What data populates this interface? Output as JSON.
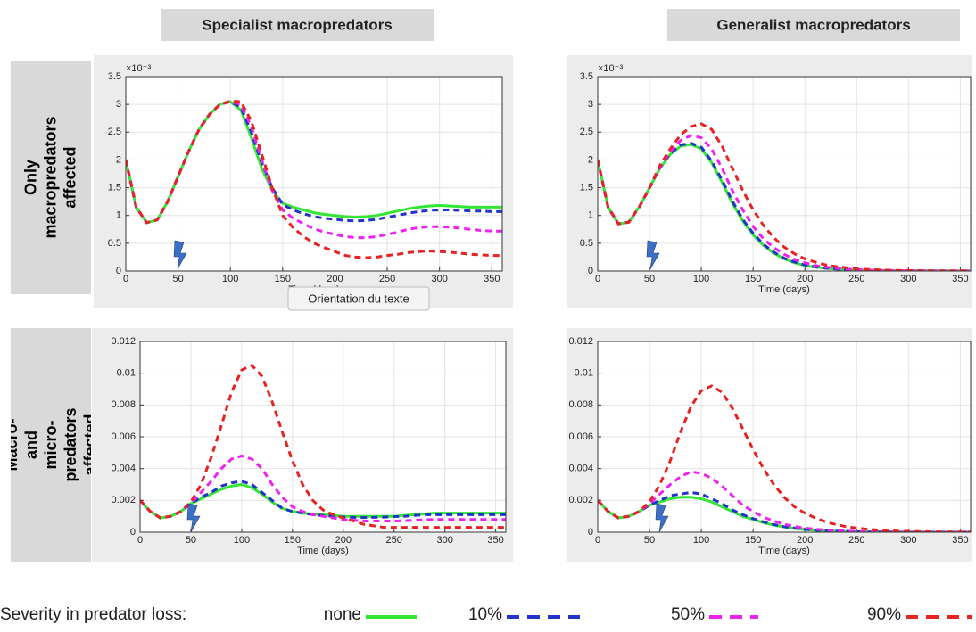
{
  "column_headers": [
    "Specialist macropredators",
    "Generalist macropredators"
  ],
  "row_labels": [
    "Only macropredators affected",
    "Macro- and micro-predators affected"
  ],
  "tooltip": "Orientation du texte",
  "legend_title": "Severity in predator loss:",
  "chart_data": [
    {
      "type": "line",
      "xlabel": "Time (days)",
      "y_multiplier": "×10⁻³",
      "x": [
        0,
        10,
        20,
        30,
        40,
        50,
        60,
        70,
        80,
        90,
        100,
        110,
        120,
        130,
        140,
        150,
        160,
        170,
        180,
        190,
        200,
        210,
        220,
        230,
        240,
        250,
        260,
        270,
        280,
        290,
        300,
        310,
        320,
        330,
        340,
        350,
        360
      ],
      "xlim": [
        0,
        360
      ],
      "xticks": [
        0,
        50,
        100,
        150,
        200,
        250,
        300,
        350
      ],
      "ylim": [
        0,
        3.5
      ],
      "yticks": [
        0,
        0.5,
        1,
        1.5,
        2,
        2.5,
        3,
        3.5
      ],
      "grid": true,
      "series": [
        {
          "name": "none",
          "color": "#33e633",
          "line_style": "solid",
          "values": [
            2.0,
            1.15,
            0.87,
            0.92,
            1.25,
            1.7,
            2.15,
            2.55,
            2.82,
            3.0,
            3.05,
            2.9,
            2.4,
            1.85,
            1.45,
            1.22,
            1.15,
            1.1,
            1.05,
            1.02,
            1.0,
            0.98,
            0.97,
            0.98,
            1.0,
            1.04,
            1.08,
            1.12,
            1.15,
            1.17,
            1.18,
            1.17,
            1.16,
            1.15,
            1.15,
            1.15,
            1.15
          ]
        },
        {
          "name": "10%",
          "color": "#2233cc",
          "line_style": "dashed",
          "values": [
            2.0,
            1.15,
            0.87,
            0.92,
            1.25,
            1.7,
            2.15,
            2.55,
            2.82,
            3.0,
            3.05,
            2.95,
            2.5,
            1.95,
            1.5,
            1.2,
            1.1,
            1.03,
            0.98,
            0.95,
            0.93,
            0.91,
            0.9,
            0.91,
            0.93,
            0.97,
            1.0,
            1.04,
            1.07,
            1.09,
            1.1,
            1.1,
            1.09,
            1.08,
            1.08,
            1.07,
            1.07
          ]
        },
        {
          "name": "50%",
          "color": "#ee22ee",
          "line_style": "dashed",
          "values": [
            2.0,
            1.15,
            0.87,
            0.92,
            1.25,
            1.7,
            2.15,
            2.55,
            2.82,
            3.0,
            3.05,
            3.0,
            2.6,
            2.0,
            1.45,
            1.1,
            0.95,
            0.85,
            0.76,
            0.7,
            0.66,
            0.62,
            0.6,
            0.6,
            0.62,
            0.66,
            0.7,
            0.75,
            0.78,
            0.8,
            0.8,
            0.79,
            0.77,
            0.75,
            0.73,
            0.72,
            0.72
          ]
        },
        {
          "name": "90%",
          "color": "#e62222",
          "line_style": "dashed",
          "values": [
            2.0,
            1.15,
            0.87,
            0.92,
            1.25,
            1.7,
            2.15,
            2.55,
            2.82,
            3.0,
            3.06,
            3.05,
            2.7,
            2.1,
            1.5,
            1.0,
            0.78,
            0.62,
            0.5,
            0.42,
            0.35,
            0.28,
            0.25,
            0.24,
            0.25,
            0.28,
            0.3,
            0.33,
            0.35,
            0.36,
            0.35,
            0.34,
            0.32,
            0.3,
            0.29,
            0.28,
            0.28
          ]
        }
      ]
    },
    {
      "type": "line",
      "xlabel": "Time (days)",
      "y_multiplier": "×10⁻³",
      "x": [
        0,
        10,
        20,
        30,
        40,
        50,
        60,
        70,
        80,
        90,
        100,
        110,
        120,
        130,
        140,
        150,
        160,
        170,
        180,
        190,
        200,
        210,
        220,
        230,
        240,
        250,
        260,
        270,
        280,
        290,
        300,
        310,
        320,
        330,
        340,
        350,
        360
      ],
      "xlim": [
        0,
        360
      ],
      "xticks": [
        0,
        50,
        100,
        150,
        200,
        250,
        300,
        350
      ],
      "ylim": [
        0,
        3.5
      ],
      "yticks": [
        0,
        0.5,
        1,
        1.5,
        2,
        2.5,
        3,
        3.5
      ],
      "grid": true,
      "series": [
        {
          "name": "none",
          "color": "#33e633",
          "line_style": "solid",
          "values": [
            2.0,
            1.15,
            0.85,
            0.88,
            1.15,
            1.5,
            1.85,
            2.1,
            2.25,
            2.28,
            2.2,
            1.95,
            1.6,
            1.22,
            0.9,
            0.65,
            0.46,
            0.32,
            0.22,
            0.15,
            0.1,
            0.07,
            0.05,
            0.035,
            0.025,
            0.018,
            0.012,
            0.009,
            0.006,
            0.004,
            0.003,
            0.002,
            0.002,
            0.002,
            0.002,
            0.002,
            0.002
          ]
        },
        {
          "name": "10%",
          "color": "#2233cc",
          "line_style": "dashed",
          "values": [
            2.0,
            1.15,
            0.85,
            0.88,
            1.15,
            1.5,
            1.86,
            2.12,
            2.27,
            2.3,
            2.23,
            1.98,
            1.64,
            1.26,
            0.93,
            0.68,
            0.48,
            0.34,
            0.23,
            0.16,
            0.11,
            0.075,
            0.053,
            0.037,
            0.026,
            0.019,
            0.013,
            0.01,
            0.007,
            0.005,
            0.003,
            0.002,
            0.002,
            0.002,
            0.002,
            0.002,
            0.002
          ]
        },
        {
          "name": "50%",
          "color": "#ee22ee",
          "line_style": "dashed",
          "values": [
            2.0,
            1.15,
            0.85,
            0.88,
            1.15,
            1.5,
            1.87,
            2.15,
            2.35,
            2.44,
            2.4,
            2.2,
            1.85,
            1.45,
            1.1,
            0.8,
            0.58,
            0.42,
            0.3,
            0.21,
            0.15,
            0.1,
            0.07,
            0.05,
            0.035,
            0.025,
            0.018,
            0.013,
            0.009,
            0.006,
            0.004,
            0.003,
            0.003,
            0.002,
            0.002,
            0.002,
            0.002
          ]
        },
        {
          "name": "90%",
          "color": "#e62222",
          "line_style": "dashed",
          "values": [
            2.0,
            1.15,
            0.85,
            0.88,
            1.15,
            1.5,
            1.9,
            2.2,
            2.45,
            2.6,
            2.65,
            2.55,
            2.25,
            1.85,
            1.45,
            1.1,
            0.82,
            0.6,
            0.43,
            0.31,
            0.22,
            0.16,
            0.11,
            0.08,
            0.06,
            0.04,
            0.03,
            0.022,
            0.016,
            0.012,
            0.009,
            0.007,
            0.005,
            0.004,
            0.003,
            0.003,
            0.003
          ]
        }
      ]
    },
    {
      "type": "line",
      "xlabel": "Time (days)",
      "x": [
        0,
        10,
        20,
        30,
        40,
        50,
        60,
        70,
        80,
        90,
        100,
        110,
        120,
        130,
        140,
        150,
        160,
        170,
        180,
        190,
        200,
        210,
        220,
        230,
        240,
        250,
        260,
        270,
        280,
        290,
        300,
        310,
        320,
        330,
        340,
        350,
        360
      ],
      "xlim": [
        0,
        360
      ],
      "xticks": [
        0,
        50,
        100,
        150,
        200,
        250,
        300,
        350
      ],
      "ylim": [
        0,
        0.012
      ],
      "yticks": [
        0,
        0.002,
        0.004,
        0.006,
        0.008,
        0.01,
        0.012
      ],
      "grid": true,
      "series": [
        {
          "name": "none",
          "color": "#33e633",
          "line_style": "solid",
          "values": [
            0.002,
            0.0013,
            0.0009,
            0.001,
            0.0013,
            0.0018,
            0.0021,
            0.0024,
            0.0027,
            0.0029,
            0.003,
            0.0028,
            0.0024,
            0.0019,
            0.0015,
            0.0013,
            0.0012,
            0.00115,
            0.0011,
            0.00105,
            0.001,
            0.001,
            0.001,
            0.001,
            0.001,
            0.001,
            0.00105,
            0.0011,
            0.00115,
            0.0012,
            0.0012,
            0.0012,
            0.0012,
            0.0012,
            0.0012,
            0.0012,
            0.0012
          ]
        },
        {
          "name": "10%",
          "color": "#2233cc",
          "line_style": "dashed",
          "values": [
            0.002,
            0.0013,
            0.0009,
            0.001,
            0.0013,
            0.0018,
            0.0022,
            0.0025,
            0.0029,
            0.0031,
            0.0032,
            0.003,
            0.0025,
            0.002,
            0.0015,
            0.0013,
            0.0012,
            0.0011,
            0.00105,
            0.001,
            0.00095,
            0.00093,
            0.00092,
            0.00093,
            0.00095,
            0.00098,
            0.001,
            0.00105,
            0.0011,
            0.0011,
            0.0011,
            0.0011,
            0.0011,
            0.0011,
            0.0011,
            0.0011,
            0.0011
          ]
        },
        {
          "name": "50%",
          "color": "#ee22ee",
          "line_style": "dashed",
          "values": [
            0.002,
            0.0013,
            0.0009,
            0.001,
            0.0013,
            0.0018,
            0.0025,
            0.0032,
            0.004,
            0.0046,
            0.0048,
            0.0046,
            0.004,
            0.003,
            0.0022,
            0.0016,
            0.0013,
            0.0011,
            0.001,
            0.0009,
            0.0008,
            0.00075,
            0.0007,
            0.0007,
            0.0007,
            0.0007,
            0.00072,
            0.00075,
            0.00078,
            0.0008,
            0.0008,
            0.0008,
            0.0008,
            0.0008,
            0.0008,
            0.0008,
            0.0008
          ]
        },
        {
          "name": "90%",
          "color": "#e62222",
          "line_style": "dashed",
          "values": [
            0.002,
            0.0013,
            0.0009,
            0.001,
            0.0013,
            0.0019,
            0.003,
            0.0047,
            0.0067,
            0.0088,
            0.0102,
            0.0105,
            0.0098,
            0.0082,
            0.0063,
            0.0045,
            0.003,
            0.002,
            0.0014,
            0.0011,
            0.0009,
            0.0007,
            0.0005,
            0.0004,
            0.0003,
            0.0003,
            0.0003,
            0.0003,
            0.0003,
            0.0003,
            0.0003,
            0.0003,
            0.0003,
            0.0003,
            0.0003,
            0.0003,
            0.0003
          ]
        }
      ]
    },
    {
      "type": "line",
      "xlabel": "Time (days)",
      "x": [
        0,
        10,
        20,
        30,
        40,
        50,
        60,
        70,
        80,
        90,
        100,
        110,
        120,
        130,
        140,
        150,
        160,
        170,
        180,
        190,
        200,
        210,
        220,
        230,
        240,
        250,
        260,
        270,
        280,
        290,
        300,
        310,
        320,
        330,
        340,
        350,
        360
      ],
      "xlim": [
        0,
        360
      ],
      "xticks": [
        0,
        50,
        100,
        150,
        200,
        250,
        300,
        350
      ],
      "ylim": [
        0,
        0.012
      ],
      "yticks": [
        0,
        0.002,
        0.004,
        0.006,
        0.008,
        0.01,
        0.012
      ],
      "grid": true,
      "series": [
        {
          "name": "none",
          "color": "#33e633",
          "line_style": "solid",
          "values": [
            0.002,
            0.0013,
            0.0009,
            0.001,
            0.0013,
            0.0017,
            0.0019,
            0.0021,
            0.0022,
            0.0022,
            0.0021,
            0.0019,
            0.0016,
            0.0013,
            0.001,
            0.0008,
            0.0006,
            0.00045,
            0.00033,
            0.00024,
            0.00017,
            0.00012,
            9e-05,
            6e-05,
            4e-05,
            3e-05,
            2e-05,
            1e-05,
            1e-05,
            0,
            0,
            0,
            0,
            0,
            0,
            0,
            0
          ]
        },
        {
          "name": "10%",
          "color": "#2233cc",
          "line_style": "dashed",
          "values": [
            0.002,
            0.0013,
            0.0009,
            0.001,
            0.0013,
            0.0017,
            0.002,
            0.0023,
            0.0024,
            0.0025,
            0.0024,
            0.0021,
            0.0018,
            0.0014,
            0.0011,
            0.00085,
            0.00065,
            0.00048,
            0.00035,
            0.00026,
            0.00018,
            0.00013,
            0.0001,
            7e-05,
            5e-05,
            3e-05,
            2e-05,
            1e-05,
            1e-05,
            0,
            0,
            0,
            0,
            0,
            0,
            0,
            0
          ]
        },
        {
          "name": "50%",
          "color": "#ee22ee",
          "line_style": "dashed",
          "values": [
            0.002,
            0.0013,
            0.0009,
            0.001,
            0.0013,
            0.0018,
            0.0024,
            0.003,
            0.0035,
            0.0038,
            0.0037,
            0.0034,
            0.0029,
            0.0023,
            0.0017,
            0.0013,
            0.00095,
            0.0007,
            0.0005,
            0.00036,
            0.00026,
            0.00019,
            0.00014,
            0.0001,
            7e-05,
            5e-05,
            3e-05,
            2e-05,
            2e-05,
            1e-05,
            1e-05,
            0,
            0,
            0,
            0,
            0,
            0
          ]
        },
        {
          "name": "90%",
          "color": "#e62222",
          "line_style": "dashed",
          "values": [
            0.002,
            0.0013,
            0.0009,
            0.001,
            0.0013,
            0.0019,
            0.003,
            0.0045,
            0.0063,
            0.0079,
            0.0089,
            0.0092,
            0.0088,
            0.0078,
            0.0065,
            0.0052,
            0.004,
            0.003,
            0.0022,
            0.0016,
            0.0012,
            0.0009,
            0.00065,
            0.00048,
            0.00035,
            0.00026,
            0.00019,
            0.00014,
            0.0001,
            7e-05,
            5e-05,
            4e-05,
            3e-05,
            2e-05,
            2e-05,
            1e-05,
            1e-05
          ]
        }
      ]
    }
  ]
}
